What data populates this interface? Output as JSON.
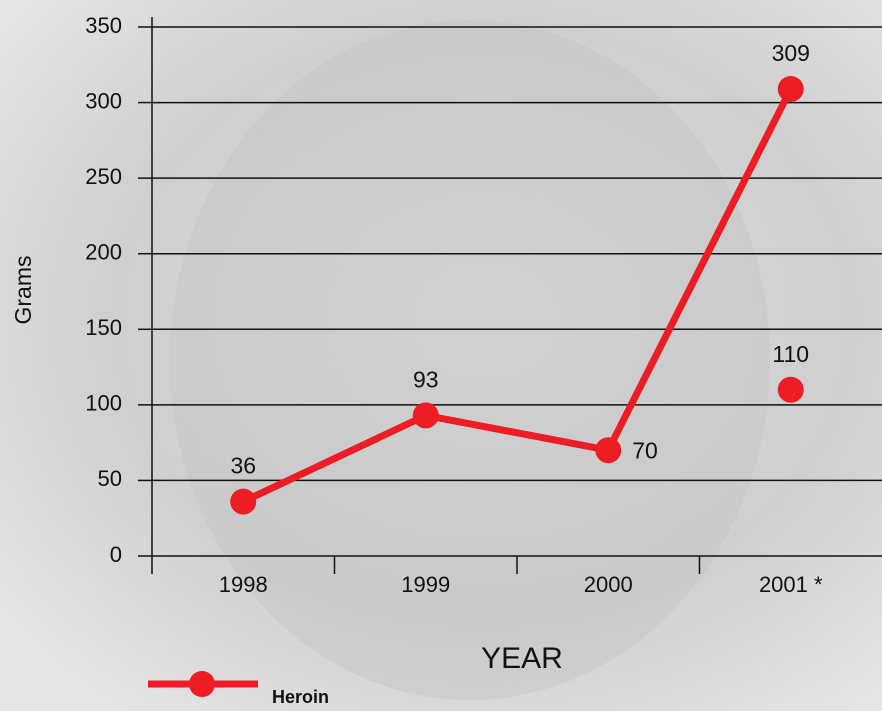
{
  "chart_data": {
    "type": "line",
    "x_label": "YEAR",
    "y_label": "Grams",
    "categories": [
      "1998",
      "1999",
      "2000",
      "2001 *"
    ],
    "series": [
      {
        "name": "Heroin",
        "color": "#ee1c25",
        "values": [
          36,
          93,
          70,
          309
        ]
      },
      {
        "color": "#ee1c25",
        "values": [
          null,
          null,
          null,
          110
        ]
      }
    ],
    "ylim": [
      0,
      350
    ],
    "yticks": [
      0,
      50,
      100,
      150,
      200,
      250,
      300,
      350
    ],
    "grid": true
  }
}
